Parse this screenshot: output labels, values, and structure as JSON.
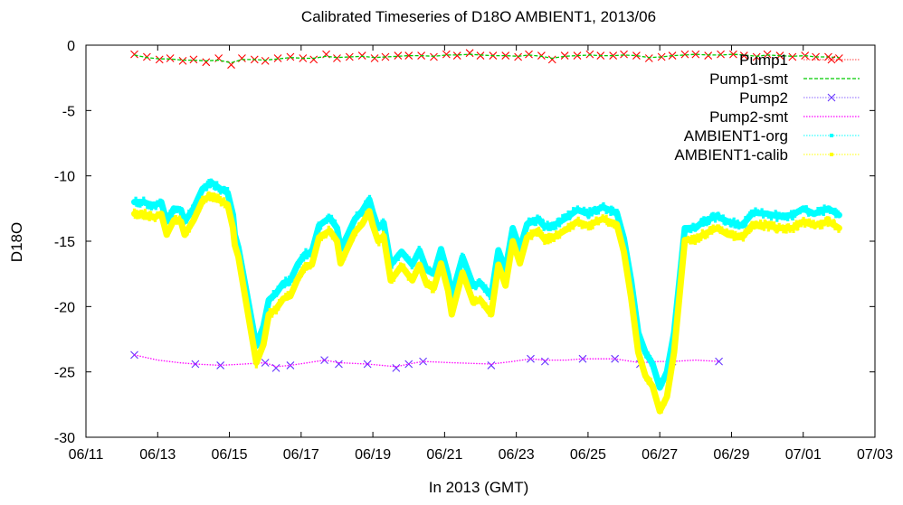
{
  "chart_data": {
    "type": "line",
    "title": "Calibrated Timeseries of D18O AMBIENT1, 2013/06",
    "xlabel": "In 2013 (GMT)",
    "ylabel": "D18O",
    "x_unit": "day of June 2013",
    "xlim": [
      11,
      33
    ],
    "ylim": [
      -30,
      0
    ],
    "x_ticks": [
      {
        "value": 11,
        "label": "06/11"
      },
      {
        "value": 13,
        "label": "06/13"
      },
      {
        "value": 15,
        "label": "06/15"
      },
      {
        "value": 17,
        "label": "06/17"
      },
      {
        "value": 19,
        "label": "06/19"
      },
      {
        "value": 21,
        "label": "06/21"
      },
      {
        "value": 23,
        "label": "06/23"
      },
      {
        "value": 25,
        "label": "06/25"
      },
      {
        "value": 27,
        "label": "06/27"
      },
      {
        "value": 29,
        "label": "06/29"
      },
      {
        "value": 31,
        "label": "07/01"
      },
      {
        "value": 33,
        "label": "07/03"
      }
    ],
    "y_ticks": [
      {
        "value": 0,
        "label": "0"
      },
      {
        "value": -5,
        "label": "-5"
      },
      {
        "value": -10,
        "label": "-10"
      },
      {
        "value": -15,
        "label": "-15"
      },
      {
        "value": -20,
        "label": "-20"
      },
      {
        "value": -25,
        "label": "-25"
      },
      {
        "value": -30,
        "label": "-30"
      }
    ],
    "grid": false,
    "legend_position": "top-right",
    "series": [
      {
        "name": "Pump1",
        "color": "#ff0000",
        "style": "points",
        "marker": "x",
        "x": [
          12.35,
          12.7,
          13.05,
          13.35,
          13.7,
          14.0,
          14.35,
          14.7,
          15.05,
          15.35,
          15.7,
          16.0,
          16.35,
          16.7,
          17.05,
          17.35,
          17.7,
          18.0,
          18.35,
          18.7,
          19.05,
          19.35,
          19.7,
          20.0,
          20.35,
          20.7,
          21.05,
          21.35,
          21.7,
          22.0,
          22.35,
          22.7,
          23.05,
          23.35,
          23.7,
          24.0,
          24.35,
          24.7,
          25.05,
          25.35,
          25.7,
          26.0,
          26.35,
          26.7,
          27.05,
          27.35,
          27.7,
          28.0,
          28.35,
          28.7,
          29.05,
          29.35,
          29.7,
          30.0,
          30.35,
          30.7,
          31.05,
          31.35,
          31.7,
          32.0
        ],
        "y": [
          -0.7,
          -0.9,
          -1.1,
          -1.0,
          -1.2,
          -1.1,
          -1.3,
          -1.0,
          -1.5,
          -1.0,
          -1.1,
          -1.2,
          -1.0,
          -0.9,
          -1.0,
          -1.1,
          -0.7,
          -1.0,
          -0.9,
          -0.8,
          -1.0,
          -0.9,
          -0.8,
          -0.8,
          -0.8,
          -0.9,
          -0.7,
          -0.8,
          -0.6,
          -0.8,
          -0.8,
          -0.8,
          -0.9,
          -0.7,
          -0.8,
          -1.1,
          -0.8,
          -0.8,
          -0.7,
          -0.8,
          -0.8,
          -0.7,
          -0.8,
          -1.0,
          -0.9,
          -0.8,
          -0.7,
          -0.7,
          -0.8,
          -0.7,
          -0.7,
          -0.8,
          -0.9,
          -0.7,
          -0.8,
          -0.9,
          -0.8,
          -0.9,
          -0.9,
          -1.0
        ]
      },
      {
        "name": "Pump1-smt",
        "color": "#00cc00",
        "style": "dashed-line",
        "x": [
          12.35,
          12.7,
          13.05,
          13.35,
          13.7,
          14.0,
          14.35,
          14.7,
          15.05,
          15.35,
          15.7,
          16.0,
          16.35,
          16.7,
          17.05,
          17.35,
          17.7,
          18.0,
          18.35,
          18.7,
          19.05,
          19.35,
          19.7,
          20.0,
          20.35,
          20.7,
          21.05,
          21.35,
          21.7,
          22.0,
          22.35,
          22.7,
          23.05,
          23.35,
          23.7,
          24.0,
          24.35,
          24.7,
          25.05,
          25.35,
          25.7,
          26.0,
          26.35,
          26.7,
          27.05,
          27.35,
          27.7,
          28.0,
          28.35,
          28.7,
          29.05,
          29.35,
          29.7,
          30.0,
          30.35,
          30.7,
          31.05,
          31.35,
          31.7,
          32.0
        ],
        "y": [
          -0.75,
          -0.95,
          -1.05,
          -1.05,
          -1.15,
          -1.15,
          -1.2,
          -1.15,
          -1.35,
          -1.1,
          -1.1,
          -1.15,
          -1.05,
          -0.95,
          -1.0,
          -1.0,
          -0.85,
          -0.95,
          -0.9,
          -0.85,
          -0.95,
          -0.9,
          -0.85,
          -0.8,
          -0.8,
          -0.85,
          -0.75,
          -0.75,
          -0.7,
          -0.75,
          -0.8,
          -0.8,
          -0.85,
          -0.75,
          -0.85,
          -1.0,
          -0.85,
          -0.8,
          -0.75,
          -0.8,
          -0.8,
          -0.75,
          -0.8,
          -0.95,
          -0.9,
          -0.8,
          -0.75,
          -0.7,
          -0.75,
          -0.75,
          -0.7,
          -0.75,
          -0.85,
          -0.75,
          -0.8,
          -0.85,
          -0.8,
          -0.9,
          -0.9,
          -0.95
        ]
      },
      {
        "name": "Pump2",
        "color": "#6633ff",
        "style": "points",
        "marker": "x",
        "x": [
          12.35,
          14.05,
          14.75,
          16.0,
          16.3,
          16.7,
          17.65,
          18.05,
          18.85,
          19.65,
          20.0,
          20.4,
          22.3,
          23.4,
          23.8,
          24.85,
          25.75,
          26.45,
          27.35,
          28.65
        ],
        "y": [
          -23.7,
          -24.4,
          -24.5,
          -24.3,
          -24.7,
          -24.5,
          -24.1,
          -24.4,
          -24.4,
          -24.7,
          -24.4,
          -24.2,
          -24.5,
          -24.0,
          -24.2,
          -24.0,
          -24.0,
          -24.4,
          -24.2,
          -24.2
        ]
      },
      {
        "name": "Pump2-smt",
        "color": "#ff00ff",
        "style": "dotted-line",
        "x": [
          12.35,
          13.0,
          13.6,
          14.05,
          14.75,
          15.4,
          16.0,
          16.3,
          16.7,
          17.2,
          17.65,
          18.05,
          18.85,
          19.65,
          20.0,
          20.4,
          21.2,
          22.3,
          22.9,
          23.4,
          23.8,
          24.4,
          24.85,
          25.75,
          26.45,
          27.0,
          27.35,
          28.0,
          28.65
        ],
        "y": [
          -23.7,
          -24.1,
          -24.3,
          -24.4,
          -24.5,
          -24.4,
          -24.3,
          -24.6,
          -24.5,
          -24.3,
          -24.1,
          -24.3,
          -24.4,
          -24.6,
          -24.4,
          -24.2,
          -24.3,
          -24.4,
          -24.2,
          -24.0,
          -24.1,
          -24.1,
          -24.0,
          -24.0,
          -24.3,
          -24.2,
          -24.2,
          -24.1,
          -24.2
        ]
      },
      {
        "name": "AMBIENT1-org",
        "color": "#00ffff",
        "style": "dense-points",
        "x": [
          12.35,
          12.6,
          12.9,
          13.1,
          13.25,
          13.45,
          13.65,
          13.75,
          14.0,
          14.25,
          14.5,
          14.75,
          14.95,
          15.1,
          15.15,
          15.25,
          15.75,
          15.95,
          16.1,
          16.3,
          16.5,
          16.7,
          16.9,
          17.1,
          17.3,
          17.5,
          17.8,
          18.0,
          18.1,
          18.3,
          18.5,
          18.7,
          18.9,
          19.0,
          19.15,
          19.3,
          19.5,
          19.8,
          20.1,
          20.3,
          20.5,
          20.7,
          20.9,
          21.1,
          21.2,
          21.5,
          21.8,
          22.0,
          22.3,
          22.5,
          22.7,
          22.9,
          23.1,
          23.3,
          23.6,
          23.8,
          24.1,
          24.4,
          24.7,
          25.0,
          25.4,
          25.8,
          26.0,
          26.2,
          26.4,
          26.6,
          26.8,
          27.0,
          27.2,
          27.4,
          27.7,
          28.0,
          28.2,
          28.6,
          28.9,
          29.3,
          29.6,
          30.0,
          30.3,
          30.7,
          31.0,
          31.3,
          31.7,
          32.0
        ],
        "y": [
          -12.0,
          -12.0,
          -12.3,
          -12.0,
          -13.5,
          -12.5,
          -12.6,
          -13.5,
          -12.5,
          -11.0,
          -10.5,
          -11.0,
          -11.3,
          -13.0,
          -14.5,
          -15.5,
          -23.0,
          -21.5,
          -19.5,
          -19.0,
          -18.2,
          -18.0,
          -16.8,
          -16.0,
          -15.8,
          -13.8,
          -13.2,
          -14.0,
          -15.6,
          -14.5,
          -13.3,
          -12.7,
          -11.8,
          -12.8,
          -14.0,
          -13.6,
          -16.8,
          -15.8,
          -16.8,
          -15.7,
          -17.2,
          -17.5,
          -15.6,
          -17.6,
          -19.2,
          -16.2,
          -18.4,
          -18.2,
          -19.2,
          -15.7,
          -17.2,
          -14.0,
          -15.6,
          -13.7,
          -13.3,
          -13.9,
          -13.7,
          -13.2,
          -12.6,
          -12.9,
          -12.4,
          -12.8,
          -14.8,
          -18.0,
          -22.0,
          -23.5,
          -24.4,
          -26.2,
          -25.0,
          -22.0,
          -14.0,
          -14.0,
          -13.5,
          -13.1,
          -13.5,
          -13.8,
          -12.8,
          -12.9,
          -13.1,
          -13.0,
          -12.5,
          -12.9,
          -12.5,
          -13.0
        ]
      },
      {
        "name": "AMBIENT1-calib",
        "color": "#ffff00",
        "style": "dense-points",
        "x": [
          12.35,
          12.6,
          12.9,
          13.1,
          13.25,
          13.45,
          13.65,
          13.75,
          14.0,
          14.25,
          14.5,
          14.75,
          14.95,
          15.1,
          15.15,
          15.25,
          15.75,
          15.95,
          16.1,
          16.3,
          16.5,
          16.7,
          16.9,
          17.1,
          17.3,
          17.5,
          17.8,
          18.0,
          18.1,
          18.3,
          18.5,
          18.7,
          18.9,
          19.0,
          19.15,
          19.3,
          19.5,
          19.8,
          20.1,
          20.3,
          20.5,
          20.7,
          20.9,
          21.1,
          21.2,
          21.5,
          21.8,
          22.0,
          22.3,
          22.5,
          22.7,
          22.9,
          23.1,
          23.3,
          23.6,
          23.8,
          24.1,
          24.4,
          24.7,
          25.0,
          25.4,
          25.8,
          26.0,
          26.2,
          26.4,
          26.6,
          26.8,
          27.0,
          27.2,
          27.4,
          27.7,
          28.0,
          28.2,
          28.6,
          28.9,
          29.3,
          29.6,
          30.0,
          30.3,
          30.7,
          31.0,
          31.3,
          31.7,
          32.0
        ],
        "y": [
          -12.9,
          -12.9,
          -13.2,
          -12.9,
          -14.5,
          -13.4,
          -13.5,
          -14.5,
          -13.4,
          -11.9,
          -11.5,
          -11.9,
          -12.2,
          -14.0,
          -15.3,
          -16.2,
          -24.3,
          -22.9,
          -20.6,
          -20.2,
          -19.4,
          -19.2,
          -17.9,
          -17.0,
          -16.8,
          -14.7,
          -14.2,
          -15.0,
          -16.7,
          -15.5,
          -14.3,
          -13.7,
          -12.7,
          -13.8,
          -15.0,
          -14.6,
          -18.0,
          -16.9,
          -18.0,
          -16.8,
          -18.3,
          -18.6,
          -16.7,
          -18.8,
          -20.6,
          -17.4,
          -19.7,
          -19.5,
          -20.6,
          -16.8,
          -18.4,
          -15.0,
          -16.7,
          -14.7,
          -14.2,
          -14.9,
          -14.6,
          -14.1,
          -13.5,
          -13.8,
          -13.3,
          -13.7,
          -15.8,
          -19.3,
          -23.5,
          -25.3,
          -26.1,
          -28.0,
          -26.9,
          -23.5,
          -14.9,
          -14.9,
          -14.5,
          -14.0,
          -14.5,
          -14.7,
          -13.7,
          -13.8,
          -14.0,
          -14.0,
          -13.5,
          -13.8,
          -13.5,
          -14.0
        ]
      }
    ]
  }
}
